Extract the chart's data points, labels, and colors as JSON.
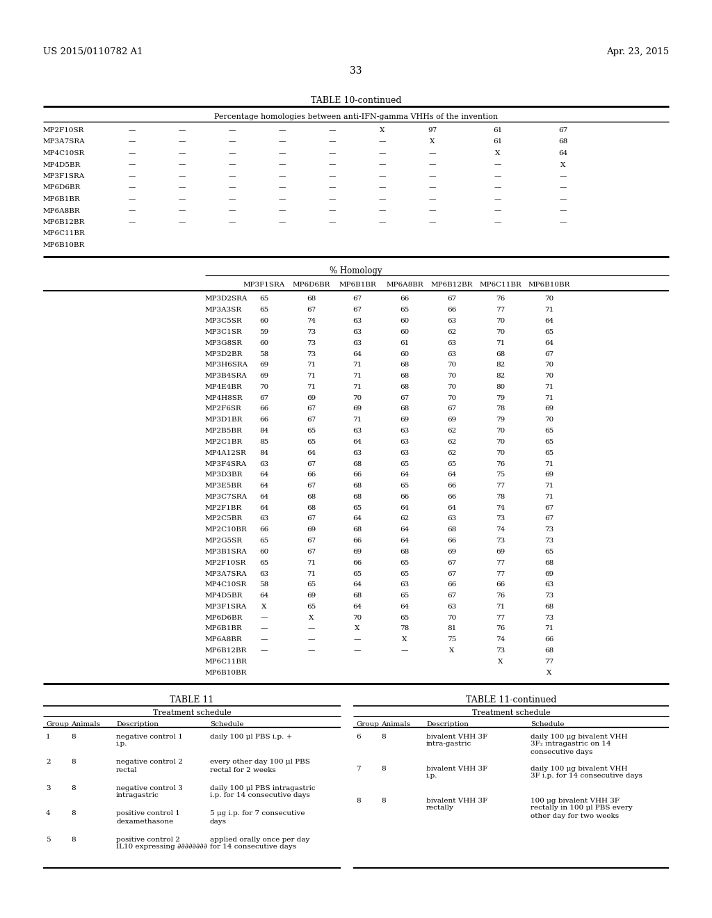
{
  "header_left": "US 2015/0110782 A1",
  "header_right": "Apr. 23, 2015",
  "page_number": "33",
  "table10_title": "TABLE 10-continued",
  "table10_subtitle": "Percentage homologies between anti-IFN-gamma VHHs of the invention",
  "table10_top_rows": [
    [
      "MP2F10SR",
      "—",
      "—",
      "—",
      "—",
      "—",
      "X",
      "97",
      "61",
      "67",
      "",
      ""
    ],
    [
      "MP3A7SRA",
      "—",
      "—",
      "—",
      "—",
      "—",
      "—",
      "X",
      "61",
      "68",
      "",
      ""
    ],
    [
      "MP4C10SR",
      "—",
      "—",
      "—",
      "—",
      "—",
      "—",
      "—",
      "X",
      "64",
      "",
      ""
    ],
    [
      "MP4D5BR",
      "—",
      "—",
      "—",
      "—",
      "—",
      "—",
      "—",
      "—",
      "X",
      "",
      ""
    ],
    [
      "MP3F1SRA",
      "—",
      "—",
      "—",
      "—",
      "—",
      "—",
      "—",
      "—",
      "—",
      "",
      ""
    ],
    [
      "MP6D6BR",
      "—",
      "—",
      "—",
      "—",
      "—",
      "—",
      "—",
      "—",
      "—",
      "",
      ""
    ],
    [
      "MP6B1BR",
      "—",
      "—",
      "—",
      "—",
      "—",
      "—",
      "—",
      "—",
      "—",
      "",
      ""
    ],
    [
      "MP6A8BR",
      "—",
      "—",
      "—",
      "—",
      "—",
      "—",
      "—",
      "—",
      "—",
      "",
      ""
    ],
    [
      "MP6B12BR",
      "—",
      "—",
      "—",
      "—",
      "—",
      "—",
      "—",
      "—",
      "—",
      "",
      ""
    ],
    [
      "MP6C11BR",
      "",
      "",
      "",
      "",
      "",
      "",
      "",
      "",
      "",
      "",
      ""
    ],
    [
      "MP6B10BR",
      "",
      "",
      "",
      "",
      "",
      "",
      "",
      "",
      "",
      "",
      ""
    ]
  ],
  "table10_bottom_headers": [
    "MP3F1SRA",
    "MP6D6BR",
    "MP6B1BR",
    "MP6A8BR",
    "MP6B12BR",
    "MP6C11BR",
    "MP6B10BR"
  ],
  "table10_bottom_rows": [
    [
      "MP3D2SRA",
      "65",
      "68",
      "67",
      "66",
      "67",
      "76",
      "70"
    ],
    [
      "MP3A3SR",
      "65",
      "67",
      "67",
      "65",
      "66",
      "77",
      "71"
    ],
    [
      "MP3C5SR",
      "60",
      "74",
      "63",
      "60",
      "63",
      "70",
      "64"
    ],
    [
      "MP3C1SR",
      "59",
      "73",
      "63",
      "60",
      "62",
      "70",
      "65"
    ],
    [
      "MP3G8SR",
      "60",
      "73",
      "63",
      "61",
      "63",
      "71",
      "64"
    ],
    [
      "MP3D2BR",
      "58",
      "73",
      "64",
      "60",
      "63",
      "68",
      "67"
    ],
    [
      "MP3H6SRA",
      "69",
      "71",
      "71",
      "68",
      "70",
      "82",
      "70"
    ],
    [
      "MP3B4SRA",
      "69",
      "71",
      "71",
      "68",
      "70",
      "82",
      "70"
    ],
    [
      "MP4E4BR",
      "70",
      "71",
      "71",
      "68",
      "70",
      "80",
      "71"
    ],
    [
      "MP4H8SR",
      "67",
      "69",
      "70",
      "67",
      "70",
      "79",
      "71"
    ],
    [
      "MP2F6SR",
      "66",
      "67",
      "69",
      "68",
      "67",
      "78",
      "69"
    ],
    [
      "MP3D1BR",
      "66",
      "67",
      "71",
      "69",
      "69",
      "79",
      "70"
    ],
    [
      "MP2B5BR",
      "84",
      "65",
      "63",
      "63",
      "62",
      "70",
      "65"
    ],
    [
      "MP2C1BR",
      "85",
      "65",
      "64",
      "63",
      "62",
      "70",
      "65"
    ],
    [
      "MP4A12SR",
      "84",
      "64",
      "63",
      "63",
      "62",
      "70",
      "65"
    ],
    [
      "MP3F4SRA",
      "63",
      "67",
      "68",
      "65",
      "65",
      "76",
      "71"
    ],
    [
      "MP3D3BR",
      "64",
      "66",
      "66",
      "64",
      "64",
      "75",
      "69"
    ],
    [
      "MP3E5BR",
      "64",
      "67",
      "68",
      "65",
      "66",
      "77",
      "71"
    ],
    [
      "MP3C7SRA",
      "64",
      "68",
      "68",
      "66",
      "66",
      "78",
      "71"
    ],
    [
      "MP2F1BR",
      "64",
      "68",
      "65",
      "64",
      "64",
      "74",
      "67"
    ],
    [
      "MP2C5BR",
      "63",
      "67",
      "64",
      "62",
      "63",
      "73",
      "67"
    ],
    [
      "MP2C10BR",
      "66",
      "69",
      "68",
      "64",
      "68",
      "74",
      "73"
    ],
    [
      "MP2G5SR",
      "65",
      "67",
      "66",
      "64",
      "66",
      "73",
      "73"
    ],
    [
      "MP3B1SRA",
      "60",
      "67",
      "69",
      "68",
      "69",
      "69",
      "65"
    ],
    [
      "MP2F10SR",
      "65",
      "71",
      "66",
      "65",
      "67",
      "77",
      "68"
    ],
    [
      "MP3A7SRA",
      "63",
      "71",
      "65",
      "65",
      "67",
      "77",
      "69"
    ],
    [
      "MP4C10SR",
      "58",
      "65",
      "64",
      "63",
      "66",
      "66",
      "63"
    ],
    [
      "MP4D5BR",
      "64",
      "69",
      "68",
      "65",
      "67",
      "76",
      "73"
    ],
    [
      "MP3F1SRA",
      "X",
      "65",
      "64",
      "64",
      "63",
      "71",
      "68"
    ],
    [
      "MP6D6BR",
      "—",
      "X",
      "70",
      "65",
      "70",
      "77",
      "73"
    ],
    [
      "MP6B1BR",
      "—",
      "—",
      "X",
      "78",
      "81",
      "76",
      "71"
    ],
    [
      "MP6A8BR",
      "—",
      "—",
      "—",
      "X",
      "75",
      "74",
      "66"
    ],
    [
      "MP6B12BR",
      "—",
      "—",
      "—",
      "—",
      "X",
      "73",
      "68"
    ],
    [
      "MP6C11BR",
      "",
      "",
      "",
      "",
      "",
      "X",
      "77"
    ],
    [
      "MP6B10BR",
      "",
      "",
      "",
      "",
      "",
      "",
      "X"
    ]
  ],
  "table11_title": "TABLE 11",
  "table11_cont_title": "TABLE 11-continued",
  "table11_left_header": "Treatment schedule",
  "table11_right_header": "Treatment schedule",
  "table11_left_rows": [
    [
      "1",
      "8",
      "negative control 1",
      "i.p.",
      "daily 100 μl PBS i.p. +",
      ""
    ],
    [
      "2",
      "8",
      "negative control 2",
      "rectal",
      "every other day 100 μl PBS",
      "rectal for 2 weeks"
    ],
    [
      "3",
      "8",
      "negative control 3",
      "intragastric",
      "daily 100 μl PBS intragastric",
      "i.p. for 14 consecutive days"
    ],
    [
      "4",
      "8",
      "positive control 1",
      "dexamethasone",
      "5 μg i.p. for 7 consecutive",
      "days"
    ],
    [
      "5",
      "8",
      "positive control 2",
      "IL10 expressing ∂∂∂∂∂∂∂∂",
      "applied orally once per day",
      "for 14 consecutive days"
    ]
  ],
  "table11_right_rows": [
    [
      "6",
      "8",
      "bivalent VHH 3F",
      "intra-gastric",
      "daily 100 μg bivalent VHH",
      "3F₂ intragastric on 14",
      "consecutive days"
    ],
    [
      "7",
      "8",
      "bivalent VHH 3F",
      "i.p.",
      "daily 100 μg bivalent VHH",
      "3F i.p. for 14 consecutive days",
      ""
    ],
    [
      "8",
      "8",
      "bivalent VHH 3F",
      "rectally",
      "100 μg bivalent VHH 3F",
      "rectally in 100 μl PBS every",
      "other day for two weeks"
    ]
  ]
}
